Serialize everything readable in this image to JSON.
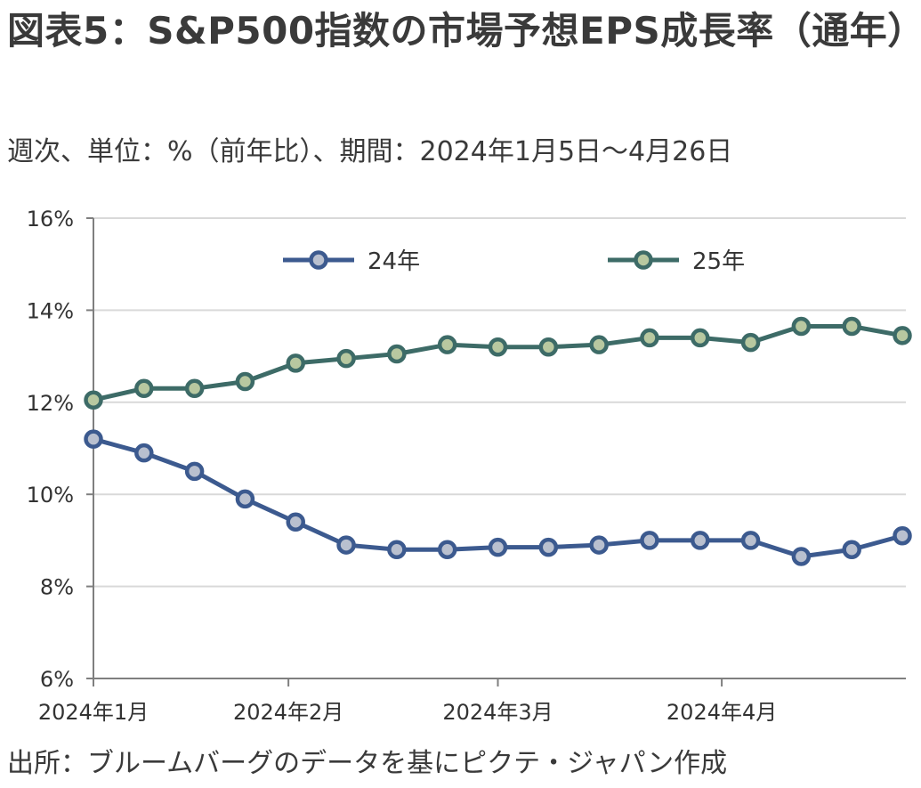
{
  "title": "図表5：S&P500指数の市場予想EPS成長率（通年）",
  "subtitle": "週次、単位：%（前年比）、期間：2024年1月5日～4月26日",
  "source": "出所：ブルームバーグのデータを基にピクテ・ジャパン作成",
  "chart_data": {
    "type": "line",
    "title": "",
    "xlabel": "",
    "ylabel": "",
    "ylim": [
      6,
      16
    ],
    "yticks": [
      "6%",
      "8%",
      "10%",
      "12%",
      "14%",
      "16%"
    ],
    "yticks_values": [
      6,
      8,
      10,
      12,
      14,
      16
    ],
    "x_labels": [
      "2024年1月",
      "2024年2月",
      "2024年3月",
      "2024年4月"
    ],
    "x": [
      "2024-01-05",
      "2024-01-12",
      "2024-01-19",
      "2024-01-26",
      "2024-02-02",
      "2024-02-09",
      "2024-02-16",
      "2024-02-23",
      "2024-03-01",
      "2024-03-08",
      "2024-03-15",
      "2024-03-22",
      "2024-03-29",
      "2024-04-05",
      "2024-04-12",
      "2024-04-19",
      "2024-04-26"
    ],
    "x_month_boundaries": [
      "2024-02-01",
      "2024-03-01",
      "2024-04-01"
    ],
    "grid": true,
    "legend_position": "top",
    "series": [
      {
        "name": "24年",
        "color": "#3c5a8f",
        "marker_fill": "#b9c0cf",
        "values": [
          11.2,
          10.9,
          10.5,
          9.9,
          9.4,
          8.9,
          8.8,
          8.8,
          8.85,
          8.85,
          8.9,
          9.0,
          9.0,
          9.0,
          8.65,
          8.8,
          9.1
        ]
      },
      {
        "name": "25年",
        "color": "#3d6b67",
        "marker_fill": "#b8c8a0",
        "values": [
          12.05,
          12.3,
          12.3,
          12.45,
          12.85,
          12.95,
          13.05,
          13.25,
          13.2,
          13.2,
          13.25,
          13.4,
          13.4,
          13.3,
          13.65,
          13.65,
          13.45
        ]
      }
    ]
  }
}
